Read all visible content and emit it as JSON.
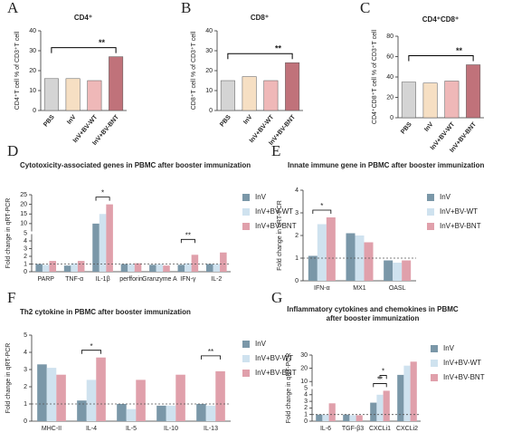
{
  "chart_data": [
    {
      "type": "bar",
      "panel": "A",
      "title": "CD4⁺",
      "y_label": "CD4⁺T cell % of CD3⁺T cell",
      "categories": [
        "PBS",
        "InV",
        "InV+BV-WT",
        "InV+BV-BNT"
      ],
      "values": [
        16,
        16,
        15,
        27
      ],
      "colors": [
        "#d4d4d4",
        "#f6dfc3",
        "#efb8b8",
        "#c0727a"
      ],
      "ylim": [
        0,
        40
      ],
      "yticks": [
        0,
        10,
        20,
        30,
        40
      ],
      "significance": [
        {
          "from": 0,
          "to": 3,
          "label": "**"
        }
      ]
    },
    {
      "type": "bar",
      "panel": "B",
      "title": "CD8⁺",
      "y_label": "CD8⁺T cell % of CD3⁺T cell",
      "categories": [
        "PBS",
        "InV",
        "InV+BV-WT",
        "InV+BV-BNT"
      ],
      "values": [
        15,
        17,
        15,
        24
      ],
      "colors": [
        "#d4d4d4",
        "#f6dfc3",
        "#efb8b8",
        "#c0727a"
      ],
      "ylim": [
        0,
        40
      ],
      "yticks": [
        0,
        10,
        20,
        30,
        40
      ],
      "significance": [
        {
          "from": 0,
          "to": 3,
          "label": "**"
        }
      ]
    },
    {
      "type": "bar",
      "panel": "C",
      "title": "CD4⁺CD8⁺",
      "y_label": "CD4⁺CD8⁺T cell % of CD3⁺T cell",
      "categories": [
        "PBS",
        "InV",
        "InV+BV-WT",
        "InV+BV-BNT"
      ],
      "values": [
        35,
        34,
        36,
        52
      ],
      "colors": [
        "#d4d4d4",
        "#f6dfc3",
        "#efb8b8",
        "#c0727a"
      ],
      "ylim": [
        0,
        80
      ],
      "yticks": [
        0,
        20,
        40,
        60,
        80
      ],
      "significance": [
        {
          "from": 0,
          "to": 3,
          "label": "**"
        }
      ]
    },
    {
      "type": "grouped_bar",
      "panel": "D",
      "title": [
        "Cytotoxicity-associated genes in PBMC after booster immunization"
      ],
      "y_label": "Fold change in qRT-PCR",
      "categories": [
        "PARP",
        "TNF-α",
        "IL-1β",
        "perfforin",
        "Granzyme A",
        "IFN-γ",
        "IL-2"
      ],
      "series": [
        {
          "name": "InV",
          "color": "#7a97a8",
          "values": [
            1,
            0.8,
            10,
            1,
            0.9,
            0.9,
            1
          ]
        },
        {
          "name": "InV+BV-WT",
          "color": "#cfe2ef",
          "values": [
            0.9,
            1.1,
            15,
            1,
            1,
            1.1,
            1
          ]
        },
        {
          "name": "InV+BV-BNT",
          "color": "#e0a0ab",
          "values": [
            1.4,
            1.4,
            20,
            1.1,
            0.8,
            2.2,
            2.5
          ]
        }
      ],
      "ylim": [
        0,
        25
      ],
      "ybreak": 5,
      "yticks": [
        0,
        1,
        2,
        3,
        4,
        5,
        10,
        15,
        20,
        25
      ],
      "refline": 1,
      "significance": [
        {
          "category": 2,
          "from": 0,
          "to": 2,
          "label": "*"
        },
        {
          "category": 5,
          "from": 0,
          "to": 2,
          "label": "**"
        }
      ]
    },
    {
      "type": "grouped_bar",
      "panel": "E",
      "title": [
        "Innate immune gene in PBMC after booster immunization"
      ],
      "y_label": "Fold change in qRT-PCR",
      "categories": [
        "IFN-α",
        "MX1",
        "OASL"
      ],
      "series": [
        {
          "name": "InV",
          "color": "#7a97a8",
          "values": [
            1.1,
            2.1,
            0.9
          ]
        },
        {
          "name": "InV+BV-WT",
          "color": "#cfe2ef",
          "values": [
            2.5,
            2,
            0.8
          ]
        },
        {
          "name": "InV+BV-BNT",
          "color": "#e0a0ab",
          "values": [
            2.8,
            1.7,
            0.9
          ]
        }
      ],
      "ylim": [
        0,
        4
      ],
      "yticks": [
        0,
        1,
        2,
        3,
        4
      ],
      "refline": 1,
      "significance": [
        {
          "category": 0,
          "from": 0,
          "to": 2,
          "label": "*"
        }
      ]
    },
    {
      "type": "grouped_bar",
      "panel": "F",
      "title": [
        "Th2 cytokine in PBMC after booster immunization"
      ],
      "y_label": "Fold change in qRT-PCR",
      "categories": [
        "MHC-II",
        "IL-4",
        "IL-5",
        "IL-10",
        "IL-13"
      ],
      "series": [
        {
          "name": "InV",
          "color": "#7a97a8",
          "values": [
            3.3,
            1.2,
            1,
            0.9,
            1
          ]
        },
        {
          "name": "InV+BV-WT",
          "color": "#cfe2ef",
          "values": [
            3.1,
            2.4,
            0.7,
            0.9,
            0.9
          ]
        },
        {
          "name": "InV+BV-BNT",
          "color": "#e0a0ab",
          "values": [
            2.7,
            3.7,
            2.4,
            2.7,
            2.9
          ]
        }
      ],
      "ylim": [
        0,
        5
      ],
      "yticks": [
        0,
        1,
        2,
        3,
        4,
        5
      ],
      "refline": 1,
      "significance": [
        {
          "category": 1,
          "from": 0,
          "to": 2,
          "label": "*"
        },
        {
          "category": 4,
          "from": 0,
          "to": 2,
          "label": "**"
        }
      ]
    },
    {
      "type": "grouped_bar",
      "panel": "G",
      "title": [
        "Inflammatory cytokines and chemokines in PBMC",
        "after booster immunization"
      ],
      "y_label": "Fold change in qRT-PCR",
      "categories": [
        "IL-6",
        "TGF-β3",
        "CXCLi1",
        "CXCLi2"
      ],
      "series": [
        {
          "name": "InV",
          "color": "#7a97a8",
          "values": [
            1,
            1,
            2.8,
            15
          ]
        },
        {
          "name": "InV+BV-WT",
          "color": "#cfe2ef",
          "values": [
            1,
            0.9,
            4,
            22
          ]
        },
        {
          "name": "InV+BV-BNT",
          "color": "#e0a0ab",
          "values": [
            2.7,
            0.9,
            4.6,
            25
          ]
        }
      ],
      "ylim": [
        0,
        30
      ],
      "ybreak": 5,
      "yticks": [
        0,
        1,
        2,
        3,
        4,
        5,
        10,
        20,
        30
      ],
      "refline": 1,
      "significance": [
        {
          "category": 2,
          "from": 0,
          "to": 2,
          "label": "**"
        },
        {
          "category": 2,
          "from": 1,
          "to": 2,
          "label": "*"
        }
      ]
    }
  ]
}
